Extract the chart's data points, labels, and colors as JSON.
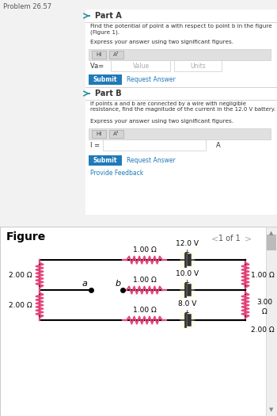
{
  "title": "Problem 26.57",
  "figure_label": "Figure",
  "page_label": "1 of 1",
  "part_a_title": "Part A",
  "part_a_text1": "Find the potential of point a with respect to point b in the figure (Figure 1).",
  "part_a_text2": "Express your answer using two significant figures.",
  "part_a_label": "Va= ",
  "part_a_value": "Value",
  "part_a_units": "Units",
  "part_b_title": "Part B",
  "part_b_text1": "If points a and b are connected by a wire with negligible resistance, find the magnitude of the current in the 12.0 V battery.",
  "part_b_text2": "Express your answer using two significant figures.",
  "part_b_label": "I = ",
  "submit_text": "Submit",
  "request_text": "Request Answer",
  "provide_feedback": "Provide Feedback",
  "bg_top": "#f2f2f2",
  "bg_white": "#ffffff",
  "bg_dark": "#1a1a1a",
  "bg_figure": "#ffffff",
  "color_teal": "#2b8fa3",
  "color_btn_blue": "#1f7ab8",
  "color_text": "#333333",
  "color_light_text": "#666666",
  "color_pink": "#e8457a",
  "color_yellow_bg": "#fffde7",
  "color_toolbar": "#e0e0e0",
  "color_border": "#cccccc",
  "color_arrow": "#aaaaaa"
}
